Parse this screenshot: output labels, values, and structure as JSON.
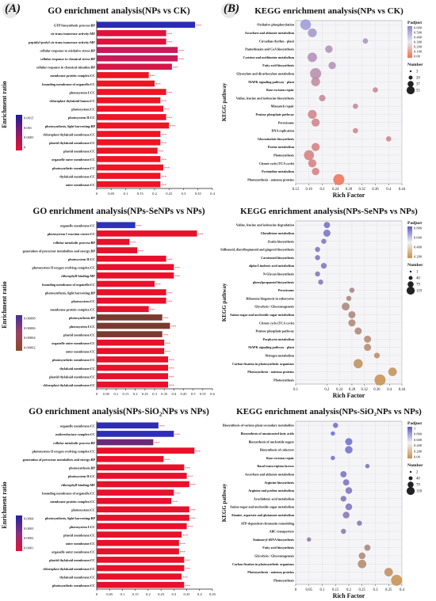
{
  "panel_labels": {
    "a": "(A)",
    "b": "(B)"
  },
  "colors": {
    "go_blue": "#2626b8",
    "go_red": "#e8132a",
    "go_purple": "#7b2f78",
    "go_brown": "#8a4a2a",
    "kegg_low_blue": "#c8c8ee",
    "kegg_high_red": "#f07050",
    "kegg_tan": "#d8a86a"
  },
  "chart_data": [
    {
      "id": "go1",
      "type": "bar",
      "orientation": "horizontal",
      "title": "GO enrichment analysis(NPs vs CK)",
      "ylabel": "Enrichment ratio",
      "xlabel": "",
      "xlim": [
        0,
        0.4
      ],
      "xticks": [
        "0",
        "0.05",
        "0.1",
        "0.15",
        "0.2",
        "0.25",
        "0.3",
        "0.35",
        "0.4"
      ],
      "categories": [
        "GTP biosynthetic process:BP",
        "cis-trans isomerase activity:MF",
        "peptidyl-prolyl cis-trans isomerase activity:MF",
        "cellular response to oxidative stress:BP",
        "cellular response to chemical stress:BP",
        "cellular response to chemical stimulus:BP",
        "membrane protein complex:CC",
        "bounding membrane of organelle:CC",
        "photosystem I:CC",
        "chloroplast thylakoid lumen:CC",
        "photosystem:CC",
        "photosystem II:CC",
        "photosynthesis, light harvesting:BP",
        "chloroplast thylakoid membrane:CC",
        "plastid thylakoid membrane:CC",
        "plastid membrane:CC",
        "organelle outer membrane:CC",
        "photosynthetic membrane:CC",
        "thylakoid membrane:CC",
        "outer membrane:CC"
      ],
      "values": [
        0.34,
        0.24,
        0.24,
        0.28,
        0.28,
        0.26,
        0.18,
        0.2,
        0.24,
        0.22,
        0.23,
        0.24,
        0.25,
        0.22,
        0.22,
        0.21,
        0.22,
        0.23,
        0.22,
        0.22
      ],
      "colors": [
        "#2b2bb5",
        "#e0123a",
        "#e0123a",
        "#c81a58",
        "#c81a58",
        "#d51648",
        "#ee1424",
        "#ee1424",
        "#ee1424",
        "#ee1424",
        "#ee1424",
        "#ee1424",
        "#ee1424",
        "#ee1424",
        "#ee1424",
        "#ee1424",
        "#ee1424",
        "#ee1424",
        "#ee1424",
        "#ee1424"
      ],
      "stars": "***",
      "legend": {
        "ticks": [
          "0.0015",
          "0.001",
          "0.0005",
          "0"
        ],
        "colors": [
          "#1a1aa8",
          "#8a1a6a",
          "#e81030"
        ]
      }
    },
    {
      "id": "go2",
      "type": "bar",
      "orientation": "horizontal",
      "title": "GO enrichment analysis(NPs-SeNPs  vs  NPs)",
      "ylabel": "Enrichment ratio",
      "xlabel": "",
      "xlim": [
        0,
        0.6
      ],
      "xticks": [
        "0",
        "0.05",
        "0.1",
        "0.15",
        "0.2",
        "0.25",
        "0.3",
        "0.35",
        "0.4",
        "0.45",
        "0.5",
        "0.55",
        "0.6"
      ],
      "categories": [
        "organelle membrane:CC",
        "photosystem I reaction center:CC",
        "cellular metabolic process:BP",
        "generation of precursor metabolites and energy:BP",
        "photosystem II:CC",
        "photosystem II oxygen evolving complex:CC",
        "chlorophyll binding:MF",
        "bounding membrane of organelle:CC",
        "photosynthesis, light harvesting:BP",
        "photosystem:CC",
        "membrane protein complex:CC",
        "photosynthesis:BP",
        "photosystem I:CC",
        "plastid membrane:CC",
        "organelle outer membrane:CC",
        "outer membrane:CC",
        "photosynthetic membrane:CC",
        "thylakoid membrane:CC",
        "plastid thylakoid membrane:CC",
        "chloroplast thylakoid membrane:CC"
      ],
      "values": [
        0.2,
        0.52,
        0.17,
        0.21,
        0.36,
        0.4,
        0.4,
        0.3,
        0.36,
        0.36,
        0.27,
        0.34,
        0.38,
        0.34,
        0.35,
        0.35,
        0.37,
        0.37,
        0.37,
        0.37
      ],
      "colors": [
        "#3030b8",
        "#e8102a",
        "#e8102a",
        "#e8102a",
        "#e8102a",
        "#e8102a",
        "#e8102a",
        "#e8102a",
        "#e8102a",
        "#e8102a",
        "#e8102a",
        "#7a3b2e",
        "#7a3b2e",
        "#7a3b2e",
        "#e8102a",
        "#e8102a",
        "#e8102a",
        "#e8102a",
        "#e8102a",
        "#e8102a"
      ],
      "stars": "***",
      "legend": {
        "ticks": [
          "0.00008",
          "0.00006",
          "0.00004",
          "0.00002"
        ],
        "colors": [
          "#4030a0",
          "#a04060",
          "#8a4a2a"
        ]
      }
    },
    {
      "id": "go3",
      "type": "bar",
      "orientation": "horizontal",
      "title": "GO enrichment analysis(NPs-SiO₂NPs  vs  NPs)",
      "ylabel": "Enrichment ratio",
      "xlabel": "",
      "xlim": [
        0,
        0.45
      ],
      "xticks": [
        "0",
        "0.05",
        "0.1",
        "0.15",
        "0.2",
        "0.25",
        "0.3",
        "0.35",
        "0.4",
        "0.45"
      ],
      "categories": [
        "organelle membrane:CC",
        "oxidoreductase complex:CC",
        "cellular metabolic process:BP",
        "photosystem II oxygen evolving complex:CC",
        "generation of precursor metabolites and energy:BP",
        "photosynthesis:BP",
        "photosystem II:CC",
        "chlorophyll binding:MF",
        "bounding membrane of organelle:CC",
        "membrane protein complex:CC",
        "photosystem:CC",
        "photosynthesis, light harvesting:BP",
        "photosystem I:CC",
        "plastid membrane:CC",
        "outer membrane:CC",
        "organelle outer membrane:CC",
        "plastid thylakoid membrane:CC",
        "chloroplast thylakoid membrane:CC",
        "thylakoid membrane:CC",
        "photosynthetic membrane:CC"
      ],
      "values": [
        0.24,
        0.3,
        0.22,
        0.38,
        0.26,
        0.34,
        0.35,
        0.36,
        0.3,
        0.29,
        0.36,
        0.36,
        0.35,
        0.33,
        0.32,
        0.32,
        0.34,
        0.34,
        0.33,
        0.34
      ],
      "colors": [
        "#2e2eb5",
        "#2e2eb5",
        "#6a2a7a",
        "#e8102a",
        "#e8102a",
        "#e8102a",
        "#e8102a",
        "#e8102a",
        "#e8102a",
        "#e8102a",
        "#e8102a",
        "#e8102a",
        "#e8102a",
        "#e8102a",
        "#e8102a",
        "#e8102a",
        "#e8102a",
        "#e8102a",
        "#e8102a",
        "#e8102a"
      ],
      "stars": "***",
      "legend": {
        "ticks": [
          "0.0004",
          "0.0003",
          "0.0002",
          "0.0001"
        ],
        "colors": [
          "#2020a8",
          "#8a3080",
          "#e81030"
        ]
      }
    },
    {
      "id": "kegg1",
      "type": "scatter",
      "title": "KEGG enrichment analysis(NPs vs CK)",
      "ylabel": "KEGG pathway",
      "xlabel": "Rich Factor",
      "xlim": [
        0.12,
        0.44
      ],
      "xticks": [
        "0.12",
        "0.16",
        "0.2",
        "0.24",
        "0.28",
        "0.32",
        "0.36",
        "0.4",
        "0.44"
      ],
      "categories": [
        "Oxidative phosphorylation",
        "Ascorbate and aldarate metabolism",
        "Circadian rhythm - plant",
        "Pantothenate and CoA biosynthesis",
        "Cysteine and methionine metabolism",
        "Fatty acid biosynthesis",
        "Glyoxylate and dicarboxylate metabolism",
        "MAPK signaling pathway - plant",
        "Base excision repair",
        "Valine, leucine and isoleucine biosynthesis",
        "Mismatch repair",
        "Pentose phosphate pathway",
        "Peroxisome",
        "DNA replication",
        "Glucosinolate biosynthesis",
        "Purine metabolism",
        "Photosynthesis",
        "Citrate cycle (TCA cycle)",
        "Pyrimidine metabolism",
        "Photosynthesis - antenna proteins"
      ],
      "x": [
        0.15,
        0.17,
        0.33,
        0.22,
        0.17,
        0.23,
        0.18,
        0.18,
        0.36,
        0.2,
        0.3,
        0.17,
        0.18,
        0.3,
        0.4,
        0.18,
        0.16,
        0.17,
        0.18,
        0.25
      ],
      "y_index": [
        0,
        1,
        2,
        3,
        4,
        5,
        6,
        7,
        8,
        9,
        10,
        11,
        12,
        13,
        14,
        15,
        16,
        17,
        18,
        19
      ],
      "size": [
        40,
        25,
        5,
        15,
        30,
        15,
        45,
        25,
        5,
        10,
        5,
        25,
        20,
        5,
        5,
        20,
        35,
        20,
        15,
        45
      ],
      "padj": [
        0.6,
        0.55,
        0.5,
        0.45,
        0.45,
        0.45,
        0.4,
        0.35,
        0.3,
        0.3,
        0.3,
        0.25,
        0.25,
        0.25,
        0.25,
        0.2,
        0.2,
        0.2,
        0.2,
        0.02
      ],
      "legend": {
        "color_title": "Padjust",
        "color_ticks": [
          "0.600",
          "0.500",
          "0.400",
          "0.300",
          "0.200",
          "0.100",
          "0.00"
        ],
        "size_title": "Number",
        "size_ticks": [
          "3",
          "20",
          "37",
          "55"
        ]
      }
    },
    {
      "id": "kegg2",
      "type": "scatter",
      "title": "KEGG enrichment analysis(NPs-SeNPs  vs  NPs)",
      "ylabel": "KEGG pathway",
      "xlabel": "Rich Factor",
      "xlim": [
        0.1,
        0.44
      ],
      "xticks": [
        "0.1",
        "0.2",
        "0.24",
        "0.28",
        "0.32",
        "0.36",
        "0.4",
        "0.44"
      ],
      "categories": [
        "Valine, leucine and isoleucine degradation",
        "Glutathione metabolism",
        "Zeatin biosynthesis",
        "Stilbenoid, diarylheptanoid and gingerol biosynthesis",
        "Carotenoid biosynthesis",
        "alpha-Linolenic acid metabolism",
        "N-Glycan biosynthesis",
        "phenylpropanoid biosynthesis",
        "Peroxisome",
        "Ribosome biogenesis in eukaryotes",
        "Glycolysis / Gluconeogenesis",
        "Amino sugar and nucleotide sugar metabolism",
        "Citrate cycle (TCA cycle)",
        "Pentose phosphate pathway",
        "Porphyrin metabolism",
        "MAPK signaling pathway - plant",
        "Nitrogen metabolism",
        "Carbon fixation in photosynthetic organisms",
        "Photosynthesis - antenna proteins",
        "Photosynthesis"
      ],
      "x": [
        0.2,
        0.2,
        0.19,
        0.17,
        0.17,
        0.19,
        0.17,
        0.18,
        0.28,
        0.27,
        0.26,
        0.28,
        0.28,
        0.3,
        0.33,
        0.33,
        0.36,
        0.3,
        0.41,
        0.37
      ],
      "y_index": [
        0,
        1,
        2,
        3,
        4,
        5,
        6,
        7,
        8,
        9,
        10,
        11,
        12,
        13,
        14,
        15,
        16,
        17,
        18,
        19
      ],
      "size": [
        20,
        30,
        10,
        10,
        10,
        15,
        10,
        10,
        10,
        10,
        40,
        30,
        30,
        30,
        30,
        30,
        15,
        60,
        50,
        100
      ],
      "padj": [
        0.8,
        0.75,
        0.7,
        0.7,
        0.7,
        0.7,
        0.65,
        0.65,
        0.35,
        0.3,
        0.3,
        0.28,
        0.25,
        0.25,
        0.22,
        0.2,
        0.15,
        0.1,
        0.05,
        0.02
      ],
      "legend": {
        "color_title": "Padjust",
        "color_ticks": [
          "0.800",
          "0.600",
          "0.400",
          "0.200"
        ],
        "size_title": "Number",
        "size_ticks": [
          "1",
          "40",
          "79",
          "119"
        ]
      }
    },
    {
      "id": "kegg3",
      "type": "scatter",
      "title": "KEGG enrichment analysis(NPs-SiO₂NPs  vs  NPs)",
      "ylabel": "KEGG pathway",
      "xlabel": "Rich Factor",
      "xlim": [
        0,
        0.4
      ],
      "xticks": [
        "0",
        "0.05",
        "0.1",
        "0.15",
        "0.2",
        "0.25",
        "0.3",
        "0.35",
        "0.4"
      ],
      "categories": [
        "Biosynthesis of various plant secondary metabolites",
        "Biosynthesis of unsaturated fatty acids",
        "Biosynthesis of nucleotide sugars",
        "Biosynthesis of cofactors",
        "Base excision repair",
        "Basal transcription factors",
        "Ascorbate and aldarate metabolism",
        "Arginine biosynthesis",
        "Arginine and proline metabolism",
        "Arachidonic acid metabolism",
        "Amino sugar and nucleotide sugar metabolism",
        "Alanine, aspartate and glutamate metabolism",
        "ATP-dependent chromatin remodeling",
        "ABC transporters",
        "Aminoacyl-tRNA biosynthesis",
        "Fatty acid biosynthesis",
        "Glycolysis / Gluconeogenesis",
        "Carbon fixation in photosynthetic organisms",
        "Photosynthesis - antenna proteins",
        "Photosynthesis"
      ],
      "x": [
        0.15,
        0.14,
        0.2,
        0.2,
        0.14,
        0.27,
        0.18,
        0.19,
        0.2,
        0.18,
        0.2,
        0.19,
        0.24,
        0.18,
        0.05,
        0.27,
        0.25,
        0.25,
        0.35,
        0.38
      ],
      "y_index": [
        0,
        1,
        2,
        3,
        4,
        5,
        6,
        7,
        8,
        9,
        10,
        11,
        12,
        13,
        14,
        15,
        16,
        17,
        18,
        19
      ],
      "size": [
        10,
        5,
        30,
        35,
        5,
        5,
        20,
        20,
        25,
        15,
        25,
        25,
        10,
        10,
        5,
        20,
        25,
        50,
        50,
        100
      ],
      "padj": [
        0.85,
        0.85,
        0.85,
        0.8,
        0.8,
        0.75,
        0.75,
        0.75,
        0.7,
        0.7,
        0.7,
        0.65,
        0.65,
        0.6,
        0.6,
        0.3,
        0.25,
        0.2,
        0.1,
        0.02
      ],
      "legend": {
        "color_title": "Padjust",
        "color_ticks": [
          "1",
          "0.800",
          "0.600",
          "0.400",
          "0.200",
          "0.00"
        ],
        "size_title": "Number",
        "size_ticks": [
          "2",
          "40",
          "79",
          "118"
        ]
      }
    }
  ]
}
